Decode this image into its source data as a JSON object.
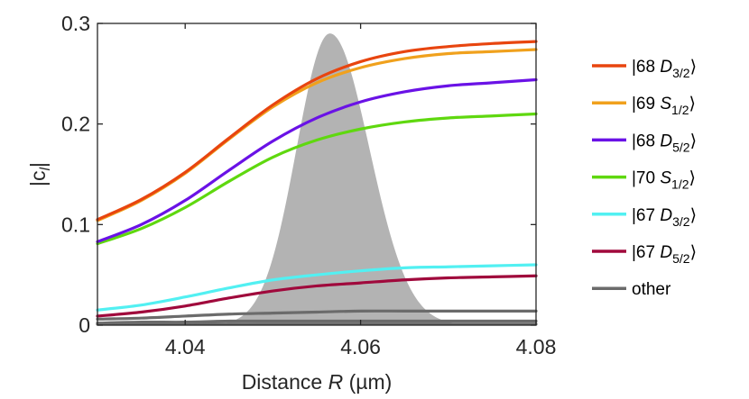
{
  "chart_data": {
    "type": "line",
    "xlabel": "Distance R (µm)",
    "xlabel_parts": {
      "prefix": "Distance ",
      "italic": "R",
      "suffix": " (µm)"
    },
    "ylabel": "|c_l|",
    "ylabel_parts": {
      "main": "|c",
      "sub": "l",
      "close": "|"
    },
    "xlim": [
      4.03,
      4.08
    ],
    "ylim": [
      0,
      0.3
    ],
    "xticks": [
      4.04,
      4.06,
      4.08
    ],
    "xtick_labels": [
      "4.04",
      "4.06",
      "4.08"
    ],
    "yticks": [
      0,
      0.1,
      0.2,
      0.3
    ],
    "ytick_labels": [
      "0",
      "0.1",
      "0.2",
      "0.3"
    ],
    "grid": false,
    "legend_position": "outside right",
    "background_peak": {
      "name": "distance distribution (shaded)",
      "color": "#b3b3b3",
      "center": 4.0565,
      "height": 0.29,
      "sigma_left": 0.0038,
      "sigma_right": 0.0045
    },
    "series": [
      {
        "name": "|68 D3/2⟩",
        "label": {
          "n": "|68 ",
          "l": "D",
          "sub": "3/2",
          "close": "⟩"
        },
        "color": "#e8450f",
        "x": [
          4.03,
          4.035,
          4.04,
          4.045,
          4.05,
          4.055,
          4.06,
          4.065,
          4.07,
          4.075,
          4.08
        ],
        "values": [
          0.105,
          0.125,
          0.152,
          0.186,
          0.219,
          0.245,
          0.262,
          0.272,
          0.277,
          0.28,
          0.282
        ]
      },
      {
        "name": "|69 S1/2⟩",
        "label": {
          "n": "|69 ",
          "l": "S",
          "sub": "1/2",
          "close": "⟩"
        },
        "color": "#f0a11d",
        "x": [
          4.03,
          4.035,
          4.04,
          4.045,
          4.05,
          4.055,
          4.06,
          4.065,
          4.07,
          4.075,
          4.08
        ],
        "values": [
          0.104,
          0.124,
          0.151,
          0.185,
          0.217,
          0.241,
          0.256,
          0.265,
          0.27,
          0.272,
          0.274
        ]
      },
      {
        "name": "|68 D5/2⟩",
        "label": {
          "n": "|68 ",
          "l": "D",
          "sub": "5/2",
          "close": "⟩"
        },
        "color": "#6a12e6",
        "x": [
          4.03,
          4.035,
          4.04,
          4.045,
          4.05,
          4.055,
          4.06,
          4.065,
          4.07,
          4.075,
          4.08
        ],
        "values": [
          0.083,
          0.1,
          0.124,
          0.154,
          0.183,
          0.206,
          0.222,
          0.232,
          0.238,
          0.241,
          0.244
        ]
      },
      {
        "name": "|70 S1/2⟩",
        "label": {
          "n": "|70 ",
          "l": "S",
          "sub": "1/2",
          "close": "⟩"
        },
        "color": "#5fd80f",
        "x": [
          4.03,
          4.035,
          4.04,
          4.045,
          4.05,
          4.055,
          4.06,
          4.065,
          4.07,
          4.075,
          4.08
        ],
        "values": [
          0.081,
          0.096,
          0.117,
          0.143,
          0.167,
          0.184,
          0.195,
          0.202,
          0.206,
          0.208,
          0.21
        ]
      },
      {
        "name": "|67 D3/2⟩",
        "label": {
          "n": "|67 ",
          "l": "D",
          "sub": "3/2",
          "close": "⟩"
        },
        "color": "#52f0f2",
        "x": [
          4.03,
          4.035,
          4.04,
          4.045,
          4.05,
          4.055,
          4.06,
          4.065,
          4.07,
          4.075,
          4.08
        ],
        "values": [
          0.015,
          0.02,
          0.028,
          0.037,
          0.045,
          0.05,
          0.054,
          0.057,
          0.058,
          0.059,
          0.06
        ]
      },
      {
        "name": "|67 D5/2⟩",
        "label": {
          "n": "|67 ",
          "l": "D",
          "sub": "5/2",
          "close": "⟩"
        },
        "color": "#a0093c",
        "x": [
          4.03,
          4.035,
          4.04,
          4.045,
          4.05,
          4.055,
          4.06,
          4.065,
          4.07,
          4.075,
          4.08
        ],
        "values": [
          0.009,
          0.013,
          0.019,
          0.027,
          0.034,
          0.039,
          0.042,
          0.045,
          0.047,
          0.048,
          0.049
        ]
      },
      {
        "name": "other",
        "label": {
          "n": "other",
          "l": "",
          "sub": "",
          "close": ""
        },
        "color": "#6b6b6b",
        "x": [
          4.03,
          4.035,
          4.04,
          4.045,
          4.05,
          4.055,
          4.06,
          4.065,
          4.07,
          4.075,
          4.08
        ],
        "values": [
          0.006,
          0.007,
          0.009,
          0.011,
          0.012,
          0.013,
          0.014,
          0.014,
          0.014,
          0.014,
          0.014
        ]
      },
      {
        "name": "other",
        "label": null,
        "color": "#6b6b6b",
        "x": [
          4.03,
          4.035,
          4.04,
          4.045,
          4.05,
          4.055,
          4.06,
          4.065,
          4.07,
          4.075,
          4.08
        ],
        "values": [
          0.002,
          0.003,
          0.003,
          0.004,
          0.004,
          0.004,
          0.004,
          0.004,
          0.004,
          0.004,
          0.004
        ]
      },
      {
        "name": "other",
        "label": null,
        "color": "#6b6b6b",
        "x": [
          4.03,
          4.035,
          4.04,
          4.045,
          4.05,
          4.055,
          4.06,
          4.065,
          4.07,
          4.075,
          4.08
        ],
        "values": [
          0.001,
          0.001,
          0.001,
          0.001,
          0.001,
          0.001,
          0.001,
          0.001,
          0.001,
          0.001,
          0.001
        ]
      }
    ]
  }
}
